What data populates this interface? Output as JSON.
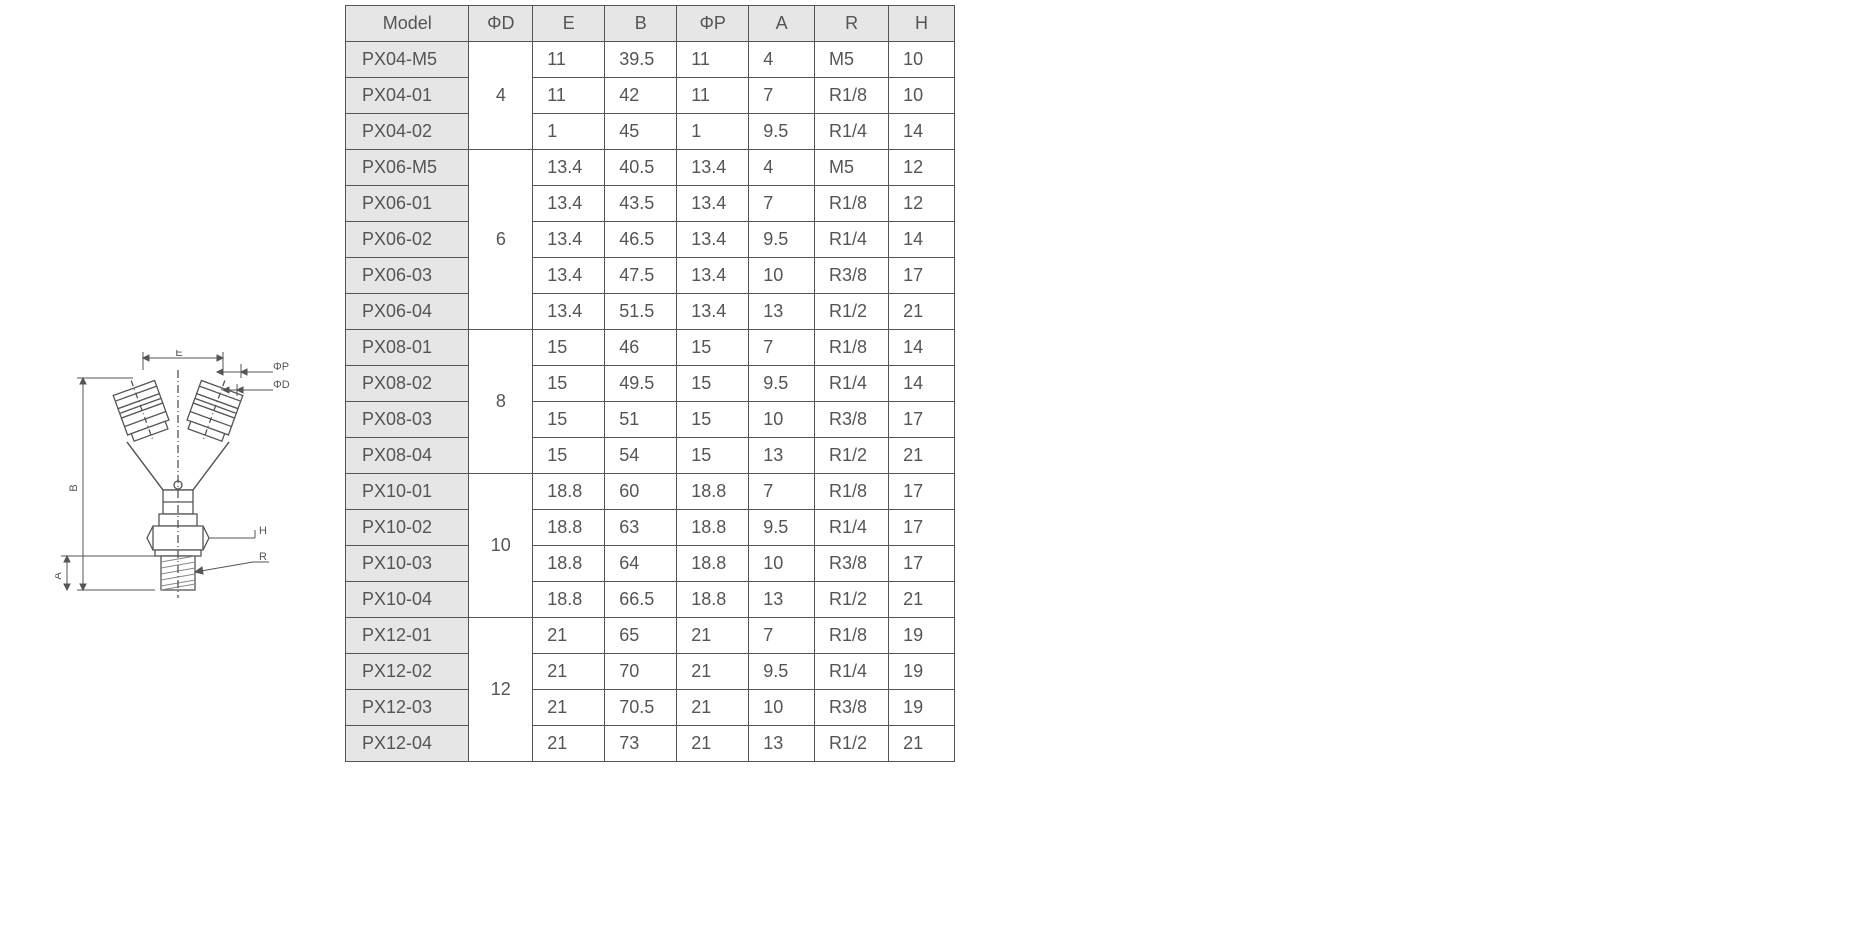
{
  "table": {
    "columns": [
      "Model",
      "ΦD",
      "E",
      "B",
      "ΦP",
      "A",
      "R",
      "H"
    ],
    "header_bg": "#e6e6e6",
    "model_col_bg": "#e6e6e6",
    "border_color": "#555555",
    "text_color": "#555555",
    "font_size_pt": 14,
    "groups": [
      {
        "phiD": "4",
        "rows": [
          {
            "model": "PX04-M5",
            "E": "11",
            "B": "39.5",
            "phiP": "11",
            "A": "4",
            "R": "M5",
            "H": "10"
          },
          {
            "model": "PX04-01",
            "E": "11",
            "B": "42",
            "phiP": "11",
            "A": "7",
            "R": "R1/8",
            "H": "10"
          },
          {
            "model": "PX04-02",
            "E": "1",
            "B": "45",
            "phiP": "1",
            "A": "9.5",
            "R": "R1/4",
            "H": "14"
          }
        ]
      },
      {
        "phiD": "6",
        "rows": [
          {
            "model": "PX06-M5",
            "E": "13.4",
            "B": "40.5",
            "phiP": "13.4",
            "A": "4",
            "R": "M5",
            "H": "12"
          },
          {
            "model": "PX06-01",
            "E": "13.4",
            "B": "43.5",
            "phiP": "13.4",
            "A": "7",
            "R": "R1/8",
            "H": "12"
          },
          {
            "model": "PX06-02",
            "E": "13.4",
            "B": "46.5",
            "phiP": "13.4",
            "A": "9.5",
            "R": "R1/4",
            "H": "14"
          },
          {
            "model": "PX06-03",
            "E": "13.4",
            "B": "47.5",
            "phiP": "13.4",
            "A": "10",
            "R": "R3/8",
            "H": "17"
          },
          {
            "model": "PX06-04",
            "E": "13.4",
            "B": "51.5",
            "phiP": "13.4",
            "A": "13",
            "R": "R1/2",
            "H": "21"
          }
        ]
      },
      {
        "phiD": "8",
        "rows": [
          {
            "model": "PX08-01",
            "E": "15",
            "B": "46",
            "phiP": "15",
            "A": "7",
            "R": "R1/8",
            "H": "14"
          },
          {
            "model": "PX08-02",
            "E": "15",
            "B": "49.5",
            "phiP": "15",
            "A": "9.5",
            "R": "R1/4",
            "H": "14"
          },
          {
            "model": "PX08-03",
            "E": "15",
            "B": "51",
            "phiP": "15",
            "A": "10",
            "R": "R3/8",
            "H": "17"
          },
          {
            "model": "PX08-04",
            "E": "15",
            "B": "54",
            "phiP": "15",
            "A": "13",
            "R": "R1/2",
            "H": "21"
          }
        ]
      },
      {
        "phiD": "10",
        "rows": [
          {
            "model": "PX10-01",
            "E": "18.8",
            "B": "60",
            "phiP": "18.8",
            "A": "7",
            "R": "R1/8",
            "H": "17"
          },
          {
            "model": "PX10-02",
            "E": "18.8",
            "B": "63",
            "phiP": "18.8",
            "A": "9.5",
            "R": "R1/4",
            "H": "17"
          },
          {
            "model": "PX10-03",
            "E": "18.8",
            "B": "64",
            "phiP": "18.8",
            "A": "10",
            "R": "R3/8",
            "H": "17"
          },
          {
            "model": "PX10-04",
            "E": "18.8",
            "B": "66.5",
            "phiP": "18.8",
            "A": "13",
            "R": "R1/2",
            "H": "21"
          }
        ]
      },
      {
        "phiD": "12",
        "rows": [
          {
            "model": "PX12-01",
            "E": "21",
            "B": "65",
            "phiP": "21",
            "A": "7",
            "R": "R1/8",
            "H": "19"
          },
          {
            "model": "PX12-02",
            "E": "21",
            "B": "70",
            "phiP": "21",
            "A": "9.5",
            "R": "R1/4",
            "H": "19"
          },
          {
            "model": "PX12-03",
            "E": "21",
            "B": "70.5",
            "phiP": "21",
            "A": "10",
            "R": "R3/8",
            "H": "19"
          },
          {
            "model": "PX12-04",
            "E": "21",
            "B": "73",
            "phiP": "21",
            "A": "13",
            "R": "R1/2",
            "H": "21"
          }
        ]
      }
    ]
  },
  "diagram": {
    "type": "engineering-drawing",
    "stroke": "#555555",
    "stroke_thin": 1,
    "stroke_med": 1.5,
    "hatch_color": "#888888",
    "label_font_size": 11,
    "labels": {
      "E": "E",
      "phiP": "ΦP",
      "phiD": "ΦD",
      "B": "B",
      "A": "A",
      "H": "H",
      "R": "R"
    },
    "geometry_notes": "Y-type push-in fitting with male thread; two angled tube ports at top, hex nut and thread at bottom; dimension leaders for E (top width), ΦP and ΦD (port diameters), B (overall height), A (thread engagement), H (hex across-flats), R (thread)."
  }
}
